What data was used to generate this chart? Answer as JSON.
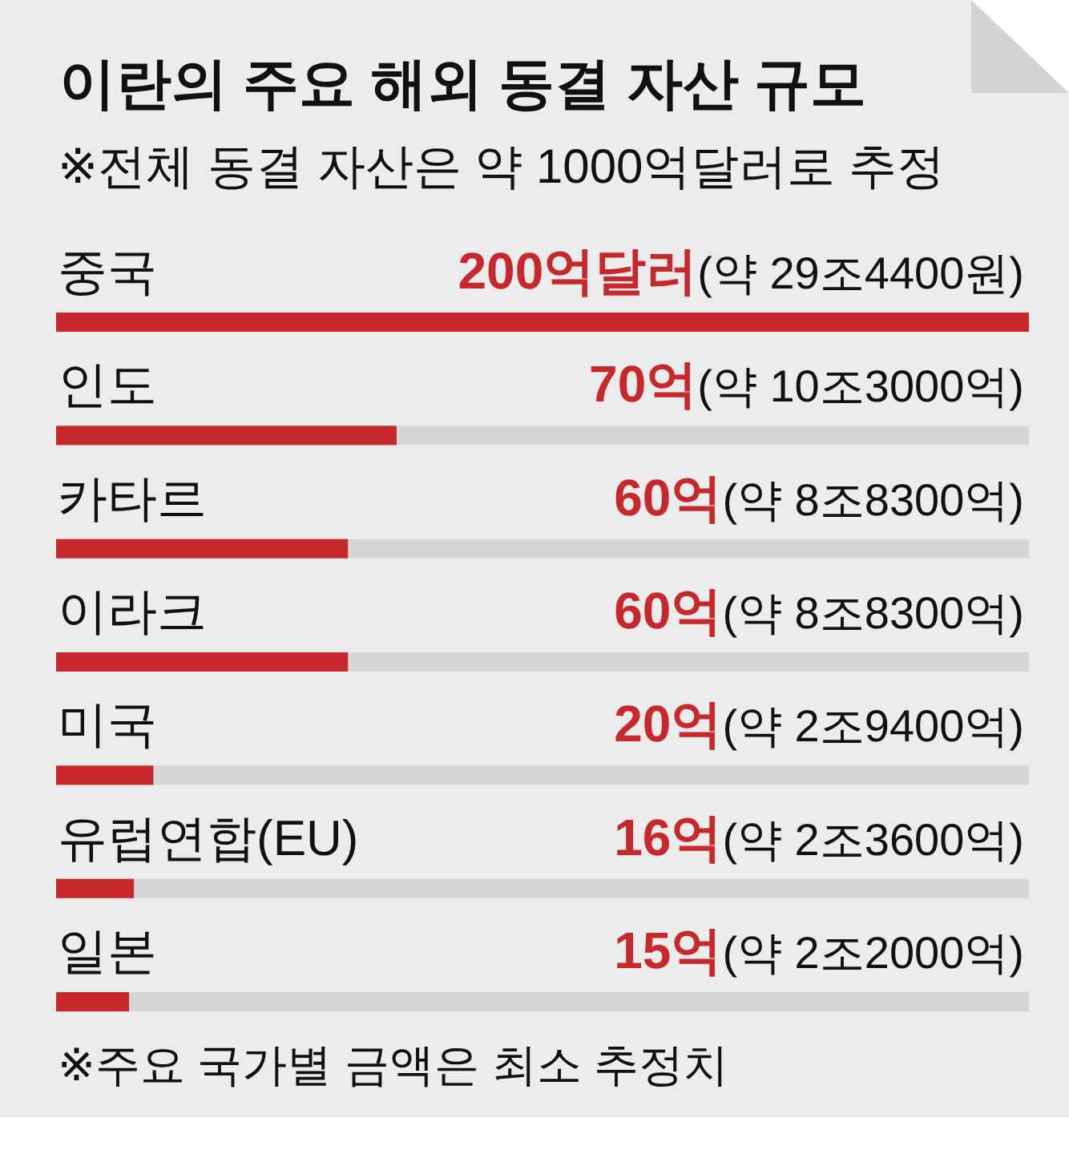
{
  "chart_data": {
    "type": "bar",
    "orientation": "horizontal",
    "title": "이란의 주요 해외 동결 자산 규모",
    "subtitle": "※전체 동결 자산은 약 1000억달러로 추정",
    "categories": [
      "중국",
      "인도",
      "카타르",
      "이라크",
      "미국",
      "유럽연합(EU)",
      "일본"
    ],
    "values": [
      200,
      70,
      60,
      60,
      20,
      16,
      15
    ],
    "color": "#c6282b",
    "xlim": [
      0,
      200
    ],
    "value_labels": [
      "200억달러(약 29조4400원)",
      "70억(약 10조3000억)",
      "60억(약 8조8300억)",
      "60억(약 8조8300억)",
      "20억(약 2조9400억)",
      "16억(약 2조3600억)",
      "15억(약 2조2000억)"
    ],
    "annotations": [
      "※주요 국가별 금액은 최소 추정치"
    ]
  }
}
